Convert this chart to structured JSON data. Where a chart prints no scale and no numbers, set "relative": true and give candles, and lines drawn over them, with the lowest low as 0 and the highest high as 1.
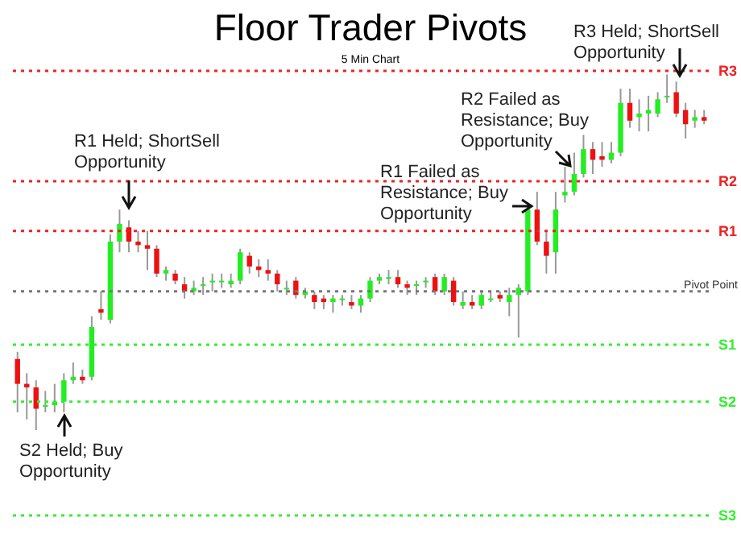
{
  "chart_data": {
    "type": "candlestick",
    "title": "Floor Trader Pivots",
    "subtitle": "5 Min Chart",
    "relative": true,
    "tick_labels": false,
    "categories": [
      null,
      null,
      null,
      null,
      null,
      null,
      null,
      null,
      null,
      null,
      null,
      null,
      null,
      null,
      null,
      null,
      null,
      null,
      null,
      null,
      null,
      null,
      null,
      null,
      null,
      null,
      null,
      null,
      null,
      null,
      null,
      null,
      null,
      null,
      null,
      null,
      null,
      null,
      null,
      null,
      null,
      null,
      null,
      null,
      null,
      null,
      null,
      null,
      null,
      null,
      null,
      null,
      null,
      null,
      null,
      null,
      null,
      null,
      null,
      null,
      null,
      null,
      null,
      null,
      null,
      null,
      null,
      null,
      null,
      null,
      null,
      null,
      null,
      null,
      null
    ],
    "ohlc": [
      [
        0.2,
        0.22,
        0.05,
        0.13
      ],
      [
        0.13,
        0.16,
        0.03,
        0.12
      ],
      [
        0.12,
        0.14,
        0,
        0.06
      ],
      [
        0.07,
        0.11,
        0.05,
        0.07
      ],
      [
        0.07,
        0.13,
        0.05,
        0.08
      ],
      [
        0.08,
        0.16,
        0.05,
        0.14
      ],
      [
        0.14,
        0.19,
        0.13,
        0.15
      ],
      [
        0.15,
        0.17,
        0.13,
        0.14
      ],
      [
        0.15,
        0.32,
        0.14,
        0.29
      ],
      [
        0.34,
        0.39,
        0.31,
        0.33
      ],
      [
        0.31,
        0.55,
        0.3,
        0.53
      ],
      [
        0.53,
        0.62,
        0.5,
        0.58
      ],
      [
        0.57,
        0.59,
        0.5,
        0.53
      ],
      [
        0.53,
        0.56,
        0.5,
        0.52
      ],
      [
        0.52,
        0.56,
        0.45,
        0.51
      ],
      [
        0.51,
        0.52,
        0.43,
        0.44
      ],
      [
        0.44,
        0.46,
        0.42,
        0.45
      ],
      [
        0.44,
        0.45,
        0.41,
        0.42
      ],
      [
        0.41,
        0.43,
        0.37,
        0.39
      ],
      [
        0.39,
        0.42,
        0.38,
        0.4
      ],
      [
        0.41,
        0.43,
        0.38,
        0.41
      ],
      [
        0.42,
        0.44,
        0.39,
        0.42
      ],
      [
        0.42,
        0.44,
        0.4,
        0.42
      ],
      [
        0.41,
        0.44,
        0.4,
        0.42
      ],
      [
        0.42,
        0.51,
        0.41,
        0.5
      ],
      [
        0.49,
        0.5,
        0.44,
        0.46
      ],
      [
        0.46,
        0.48,
        0.43,
        0.45
      ],
      [
        0.45,
        0.48,
        0.42,
        0.44
      ],
      [
        0.44,
        0.45,
        0.39,
        0.41
      ],
      [
        0.4,
        0.42,
        0.38,
        0.4
      ],
      [
        0.42,
        0.43,
        0.37,
        0.38
      ],
      [
        0.38,
        0.4,
        0.37,
        0.39
      ],
      [
        0.38,
        0.39,
        0.34,
        0.36
      ],
      [
        0.37,
        0.38,
        0.34,
        0.36
      ],
      [
        0.36,
        0.38,
        0.33,
        0.37
      ],
      [
        0.37,
        0.38,
        0.35,
        0.37
      ],
      [
        0.36,
        0.38,
        0.34,
        0.35
      ],
      [
        0.35,
        0.38,
        0.33,
        0.37
      ],
      [
        0.37,
        0.43,
        0.36,
        0.42
      ],
      [
        0.42,
        0.44,
        0.41,
        0.43
      ],
      [
        0.43,
        0.45,
        0.41,
        0.43
      ],
      [
        0.43,
        0.45,
        0.4,
        0.41
      ],
      [
        0.41,
        0.42,
        0.38,
        0.4
      ],
      [
        0.41,
        0.42,
        0.38,
        0.41
      ],
      [
        0.42,
        0.43,
        0.4,
        0.42
      ],
      [
        0.43,
        0.44,
        0.38,
        0.39
      ],
      [
        0.39,
        0.44,
        0.38,
        0.43
      ],
      [
        0.42,
        0.43,
        0.35,
        0.36
      ],
      [
        0.35,
        0.39,
        0.34,
        0.36
      ],
      [
        0.36,
        0.38,
        0.34,
        0.35
      ],
      [
        0.35,
        0.39,
        0.34,
        0.38
      ],
      [
        0.37,
        0.39,
        0.36,
        0.37
      ],
      [
        0.38,
        0.39,
        0.36,
        0.37
      ],
      [
        0.36,
        0.4,
        0.32,
        0.38
      ],
      [
        0.38,
        0.41,
        0.26,
        0.4
      ],
      [
        0.39,
        0.64,
        0.38,
        0.62
      ],
      [
        0.62,
        0.67,
        0.52,
        0.53
      ],
      [
        0.53,
        0.56,
        0.44,
        0.49
      ],
      [
        0.5,
        0.67,
        0.44,
        0.62
      ],
      [
        0.66,
        0.74,
        0.64,
        0.67
      ],
      [
        0.67,
        0.78,
        0.66,
        0.72
      ],
      [
        0.72,
        0.83,
        0.71,
        0.79
      ],
      [
        0.79,
        0.81,
        0.72,
        0.76
      ],
      [
        0.77,
        0.81,
        0.74,
        0.76
      ],
      [
        0.76,
        0.81,
        0.75,
        0.78
      ],
      [
        0.78,
        0.96,
        0.77,
        0.92
      ],
      [
        0.92,
        0.96,
        0.85,
        0.87
      ],
      [
        0.88,
        0.93,
        0.84,
        0.89
      ],
      [
        0.89,
        0.94,
        0.84,
        0.9
      ],
      [
        0.89,
        0.95,
        0.88,
        0.93
      ],
      [
        0.94,
        1.0,
        0.92,
        0.94
      ],
      [
        0.95,
        0.98,
        0.88,
        0.89
      ],
      [
        0.9,
        0.92,
        0.82,
        0.86
      ],
      [
        0.87,
        0.9,
        0.85,
        0.88
      ],
      [
        0.88,
        0.9,
        0.86,
        0.87
      ]
    ],
    "colors": [
      "#ee1111",
      "#ee1111",
      "#ee1111",
      "#22ee22",
      "#22ee22",
      "#22ee22",
      "#22ee22",
      "#ee1111",
      "#22ee22",
      "#ee1111",
      "#22ee22",
      "#22ee22",
      "#ee1111",
      "#ee1111",
      "#ee1111",
      "#ee1111",
      "#22ee22",
      "#ee1111",
      "#ee1111",
      "#22ee22",
      "#22ee22",
      "#22ee22",
      "#22ee22",
      "#22ee22",
      "#22ee22",
      "#ee1111",
      "#ee1111",
      "#ee1111",
      "#ee1111",
      "#22ee22",
      "#ee1111",
      "#22ee22",
      "#ee1111",
      "#ee1111",
      "#22ee22",
      "#22ee22",
      "#ee1111",
      "#22ee22",
      "#22ee22",
      "#22ee22",
      "#22ee22",
      "#ee1111",
      "#ee1111",
      "#22ee22",
      "#22ee22",
      "#ee1111",
      "#22ee22",
      "#ee1111",
      "#22ee22",
      "#ee1111",
      "#22ee22",
      "#22ee22",
      "#ee1111",
      "#22ee22",
      "#22ee22",
      "#22ee22",
      "#ee1111",
      "#ee1111",
      "#22ee22",
      "#22ee22",
      "#22ee22",
      "#22ee22",
      "#ee1111",
      "#ee1111",
      "#22ee22",
      "#22ee22",
      "#ee1111",
      "#22ee22",
      "#22ee22",
      "#22ee22",
      "#22ee22",
      "#ee1111",
      "#ee1111",
      "#22ee22",
      "#ee1111"
    ],
    "ref_lines": [
      {
        "axis": "y",
        "value": 1.01,
        "label": "R3",
        "color": "#ee2222",
        "line_style": "dotted"
      },
      {
        "axis": "y",
        "value": 0.7,
        "label": "R2",
        "color": "#ee2222",
        "line_style": "dotted"
      },
      {
        "axis": "y",
        "value": 0.56,
        "label": "R1",
        "color": "#ee2222",
        "line_style": "dotted"
      },
      {
        "axis": "y",
        "value": 0.39,
        "label": "Pivot Point",
        "color": "#777777",
        "line_style": "dotted"
      },
      {
        "axis": "y",
        "value": 0.24,
        "label": "S1",
        "color": "#33ee33",
        "line_style": "dotted"
      },
      {
        "axis": "y",
        "value": 0.08,
        "label": "S2",
        "color": "#33ee33",
        "line_style": "dotted"
      },
      {
        "axis": "y",
        "value": -0.24,
        "label": "S3",
        "color": "#33ee33",
        "line_style": "dotted"
      }
    ],
    "annotations": [
      "R1 Held; ShortSell Opportunity",
      "S2 Held; Buy Opportunity",
      "R1 Failed as Resistance; Buy Opportunity",
      "R2 Failed as Resistance; Buy Opportunity",
      "R3 Held; ShortSell Opportunity"
    ]
  }
}
